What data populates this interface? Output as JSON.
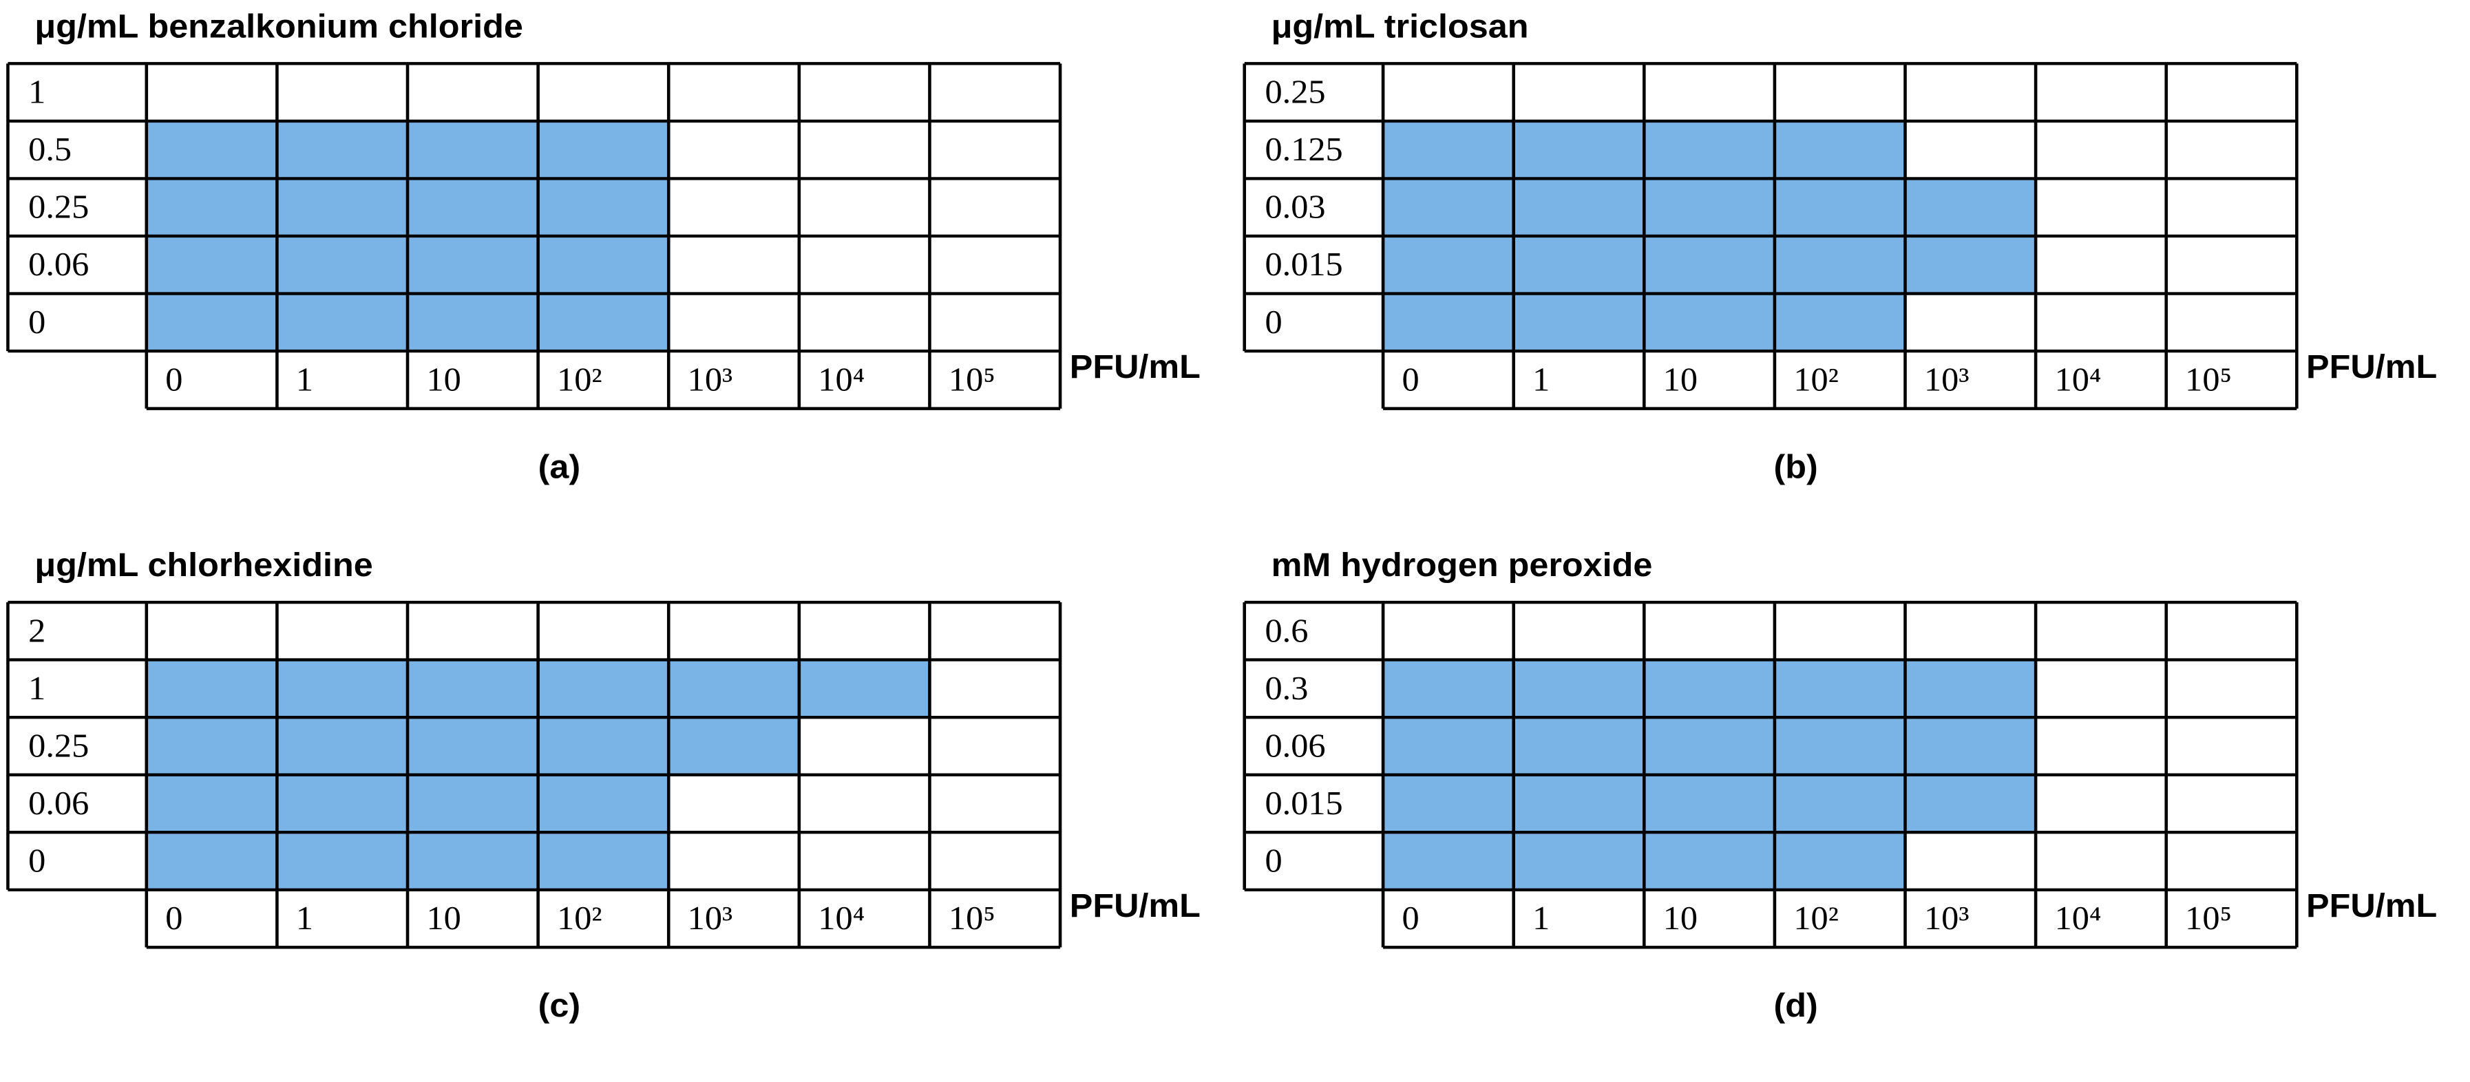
{
  "panels": [
    {
      "title": "μg/mL benzalkonium chloride",
      "label": "(a)",
      "unit": "PFU/mL",
      "rows": [
        "1",
        "0.5",
        "0.25",
        "0.06",
        "0"
      ],
      "columns": [
        "0",
        "1",
        "10",
        "10²",
        "10³",
        "10⁴",
        "10⁵"
      ],
      "shaded": [
        0,
        4,
        4,
        4,
        4
      ]
    },
    {
      "title": "μg/mL triclosan",
      "label": "(b)",
      "unit": "PFU/mL",
      "rows": [
        "0.25",
        "0.125",
        "0.03",
        "0.015",
        "0"
      ],
      "columns": [
        "0",
        "1",
        "10",
        "10²",
        "10³",
        "10⁴",
        "10⁵"
      ],
      "shaded": [
        0,
        4,
        5,
        5,
        4
      ]
    },
    {
      "title": "μg/mL chlorhexidine",
      "label": "(c)",
      "unit": "PFU/mL",
      "rows": [
        "2",
        "1",
        "0.25",
        "0.06",
        "0"
      ],
      "columns": [
        "0",
        "1",
        "10",
        "10²",
        "10³",
        "10⁴",
        "10⁵"
      ],
      "shaded": [
        0,
        6,
        5,
        4,
        4
      ]
    },
    {
      "title": "mM hydrogen peroxide",
      "label": "(d)",
      "unit": "PFU/mL",
      "rows": [
        "0.6",
        "0.3",
        "0.06",
        "0.015",
        "0"
      ],
      "columns": [
        "0",
        "1",
        "10",
        "10²",
        "10³",
        "10⁴",
        "10⁵"
      ],
      "shaded": [
        0,
        5,
        5,
        5,
        4
      ]
    }
  ]
}
